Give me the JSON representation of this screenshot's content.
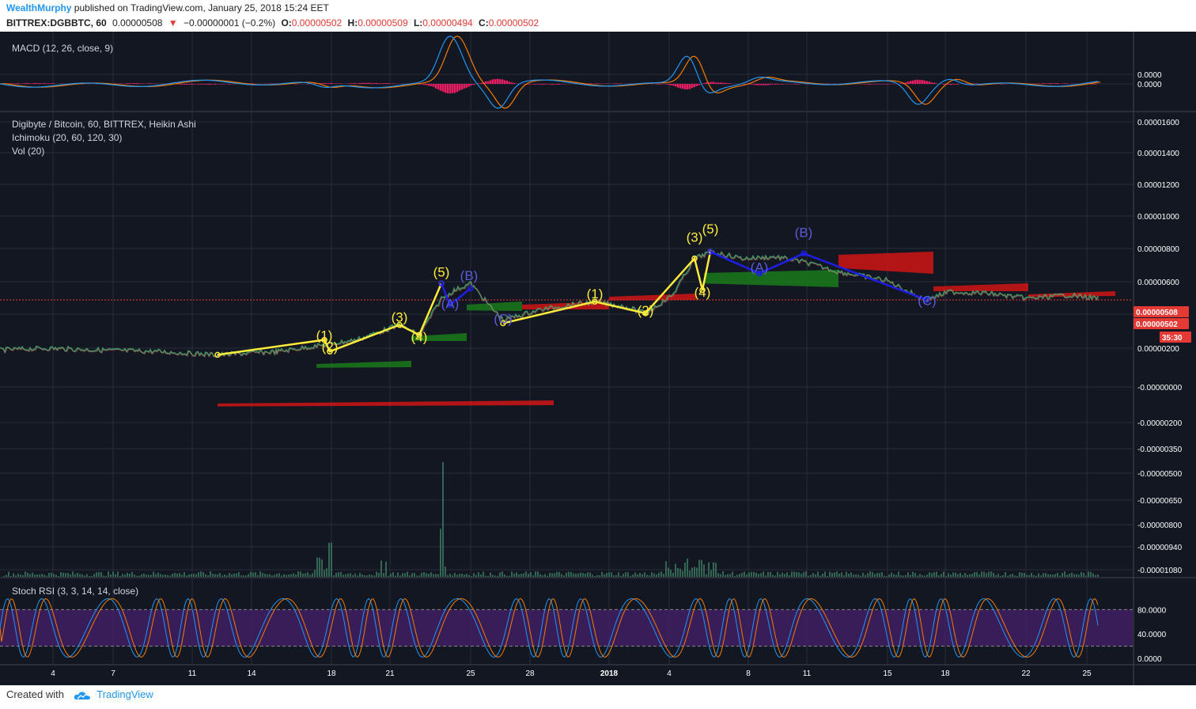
{
  "header": {
    "author": "WealthMurphy",
    "published": "published on TradingView.com, January 25, 2018 15:24 EET",
    "symbol": "BITTREX:DGBBTC, 60",
    "last": "0.00000508",
    "change_arrow": "▼",
    "change": "−0.00000001 (−0.2%)",
    "o_label": "O:",
    "o": "0.00000502",
    "h_label": "H:",
    "h": "0.00000509",
    "l_label": "L:",
    "l": "0.00000494",
    "c_label": "C:",
    "c": "0.00000502"
  },
  "footer": {
    "created_with": "Created with",
    "brand": "TradingView"
  },
  "colors": {
    "background": "#131722",
    "grid": "#2a2e39",
    "yellow_wave": "#ffeb3b",
    "blue_wave": "#1e1ee8",
    "cloud_bull": "#1b7a1b",
    "cloud_bear": "#d01515",
    "macd_line": "#2196f3",
    "signal_line": "#f57c00",
    "histogram": "#e91e63",
    "stoch_band": "#3f1f63"
  },
  "chart_data": [
    {
      "type": "line",
      "panel": "MACD",
      "title": "MACD (12, 26, close, 9)",
      "y_ticks": [
        "0.0000",
        "0.0000"
      ],
      "series": []
    },
    {
      "type": "line",
      "panel": "main",
      "title": "Digibyte / Bitcoin, 60, BITTREX, Heikin Ashi",
      "indicators": [
        "Ichimoku (20, 60, 120, 30)",
        "Vol (20)"
      ],
      "y_ticks": [
        "0.00001600",
        "0.00001400",
        "0.00001200",
        "0.00001000",
        "0.00000800",
        "0.00000600",
        "0.00000400",
        "0.00000200",
        "-0.00000000",
        "-0.00000200",
        "-0.00000350",
        "-0.00000500",
        "-0.00000650",
        "-0.00000800",
        "-0.00000940",
        "-0.00001080"
      ],
      "price_tags": [
        "0.00000508",
        "0.00000502",
        "35:30"
      ],
      "x_ticks": [
        "4",
        "7",
        "11",
        "14",
        "18",
        "21",
        "25",
        "28",
        "2018",
        "4",
        "8",
        "11",
        "15",
        "18",
        "22",
        "25"
      ],
      "price_path": [
        {
          "x": 0,
          "y": 1.9e-06
        },
        {
          "x": 60,
          "y": 2e-06
        },
        {
          "x": 120,
          "y": 1.9e-06
        },
        {
          "x": 200,
          "y": 1.8e-06
        },
        {
          "x": 275,
          "y": 1.6e-06
        },
        {
          "x": 350,
          "y": 1.8e-06
        },
        {
          "x": 410,
          "y": 2.2e-06
        },
        {
          "x": 450,
          "y": 2.5e-06
        },
        {
          "x": 505,
          "y": 3.4e-06
        },
        {
          "x": 530,
          "y": 2.8e-06
        },
        {
          "x": 558,
          "y": 5e-06
        },
        {
          "x": 575,
          "y": 5.5e-06
        },
        {
          "x": 595,
          "y": 5.9e-06
        },
        {
          "x": 620,
          "y": 4.5e-06
        },
        {
          "x": 636,
          "y": 3.7e-06
        },
        {
          "x": 680,
          "y": 4.3e-06
        },
        {
          "x": 720,
          "y": 4.6e-06
        },
        {
          "x": 752,
          "y": 4.8e-06
        },
        {
          "x": 790,
          "y": 4.5e-06
        },
        {
          "x": 816,
          "y": 4.1e-06
        },
        {
          "x": 850,
          "y": 5.2e-06
        },
        {
          "x": 878,
          "y": 7.4e-06
        },
        {
          "x": 898,
          "y": 7.8e-06
        },
        {
          "x": 940,
          "y": 7.4e-06
        },
        {
          "x": 980,
          "y": 7.5e-06
        },
        {
          "x": 1016,
          "y": 7.2e-06
        },
        {
          "x": 1060,
          "y": 6.6e-06
        },
        {
          "x": 1120,
          "y": 6.1e-06
        },
        {
          "x": 1170,
          "y": 4.9e-06
        },
        {
          "x": 1200,
          "y": 5.4e-06
        },
        {
          "x": 1250,
          "y": 5.3e-06
        },
        {
          "x": 1300,
          "y": 5e-06
        },
        {
          "x": 1350,
          "y": 5.2e-06
        },
        {
          "x": 1390,
          "y": 5e-06
        }
      ],
      "annotations": [
        {
          "label": "(1)",
          "x": 410,
          "y": 2.5e-06,
          "color": "yellow"
        },
        {
          "label": "(2)",
          "x": 417,
          "y": 1.8e-06,
          "color": "yellow"
        },
        {
          "label": "(3)",
          "x": 505,
          "y": 3.6e-06,
          "color": "yellow"
        },
        {
          "label": "(4)",
          "x": 530,
          "y": 2.4e-06,
          "color": "yellow"
        },
        {
          "label": "(5)",
          "x": 558,
          "y": 6.3e-06,
          "color": "yellow"
        },
        {
          "label": "(A)",
          "x": 569,
          "y": 4.4e-06,
          "color": "blue"
        },
        {
          "label": "(B)",
          "x": 593,
          "y": 6.1e-06,
          "color": "blue"
        },
        {
          "label": "(C)",
          "x": 636,
          "y": 3.5e-06,
          "color": "blue"
        },
        {
          "label": "(1)",
          "x": 752,
          "y": 5e-06,
          "color": "yellow"
        },
        {
          "label": "(2)",
          "x": 816,
          "y": 4e-06,
          "color": "yellow"
        },
        {
          "label": "(3)",
          "x": 878,
          "y": 8.4e-06,
          "color": "yellow"
        },
        {
          "label": "(4)",
          "x": 888,
          "y": 5.1e-06,
          "color": "yellow"
        },
        {
          "label": "(5)",
          "x": 898,
          "y": 8.9e-06,
          "color": "yellow"
        },
        {
          "label": "(A)",
          "x": 960,
          "y": 6.6e-06,
          "color": "blue"
        },
        {
          "label": "(B)",
          "x": 1016,
          "y": 8.7e-06,
          "color": "blue"
        },
        {
          "label": "(C)",
          "x": 1172,
          "y": 4.6e-06,
          "color": "blue"
        }
      ]
    },
    {
      "type": "line",
      "panel": "Stoch RSI",
      "title": "Stoch RSI (3, 3, 14, 14, close)",
      "y_ticks": [
        "80.0000",
        "40.0000",
        "0.0000"
      ],
      "ylim": [
        0,
        100
      ],
      "bands": [
        20,
        80
      ]
    }
  ]
}
